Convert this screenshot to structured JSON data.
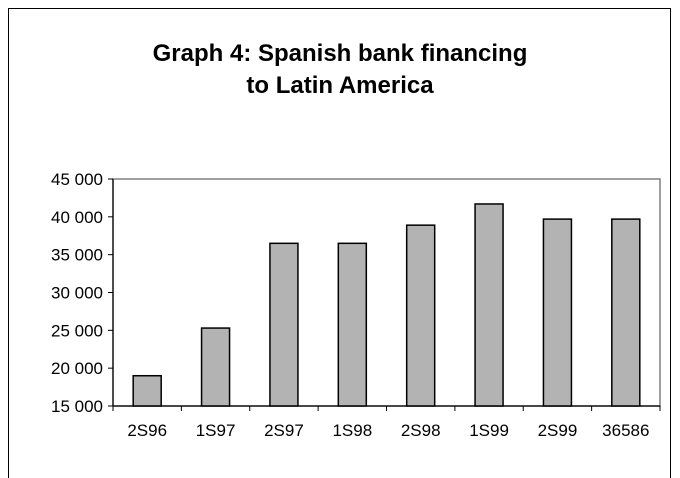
{
  "chart_data": {
    "type": "bar",
    "title_lines": [
      "Graph 4: Spanish bank financing",
      "to Latin America"
    ],
    "categories": [
      "2S96",
      "1S97",
      "2S97",
      "1S98",
      "2S98",
      "1S99",
      "2S99",
      "36586"
    ],
    "values": [
      19000,
      25300,
      36500,
      36500,
      38900,
      41700,
      39700,
      39700
    ],
    "ylim": [
      15000,
      45000
    ],
    "yticks": [
      15000,
      20000,
      25000,
      30000,
      35000,
      40000,
      45000
    ],
    "ytick_labels": [
      "15 000",
      "20 000",
      "25 000",
      "30 000",
      "35 000",
      "40 000",
      "45 000"
    ],
    "xlabel": "",
    "ylabel": "",
    "grid": false,
    "legend": "none",
    "bar_color": "#b3b3b3",
    "bar_edge_color": "#000000",
    "axis_color": "#808080"
  }
}
